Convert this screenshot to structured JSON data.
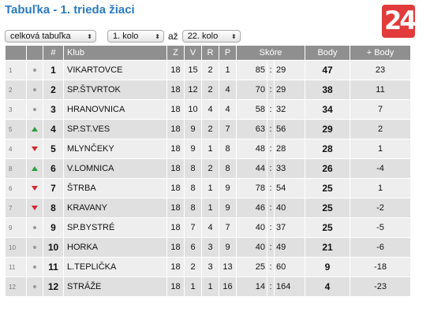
{
  "title": "Tabuľka - 1. trieda žiaci",
  "filters": {
    "table_type": "celková tabuľka",
    "round_from": "1. kolo",
    "separator": "až",
    "round_to": "22. kolo"
  },
  "logo": {
    "text": "24",
    "color": "#e23b3b"
  },
  "colors": {
    "header_bg": "#8f8f8f",
    "title": "#2a7bc4",
    "up": "#2e9e3a",
    "down": "#d42a2a"
  },
  "headers": {
    "pos": "#",
    "club": "Klub",
    "z": "Z",
    "v": "V",
    "r": "R",
    "p": "P",
    "score": "Skóre",
    "points": "Body",
    "plus": "+ Body"
  },
  "rows": [
    {
      "prev": "1",
      "trend": "same",
      "pos": "1",
      "club": "VIKARTOVCE",
      "z": "18",
      "v": "15",
      "r": "2",
      "p": "1",
      "gf": "85",
      "sep": ":",
      "ga": "29",
      "points": "47",
      "plus": "23"
    },
    {
      "prev": "2",
      "trend": "same",
      "pos": "2",
      "club": "SP.ŠTVRTOK",
      "z": "18",
      "v": "12",
      "r": "2",
      "p": "4",
      "gf": "70",
      "sep": ":",
      "ga": "29",
      "points": "38",
      "plus": "11"
    },
    {
      "prev": "3",
      "trend": "same",
      "pos": "3",
      "club": "HRANOVNICA",
      "z": "18",
      "v": "10",
      "r": "4",
      "p": "4",
      "gf": "58",
      "sep": ":",
      "ga": "32",
      "points": "34",
      "plus": "7"
    },
    {
      "prev": "5",
      "trend": "up",
      "pos": "4",
      "club": "SP.ST.VES",
      "z": "18",
      "v": "9",
      "r": "2",
      "p": "7",
      "gf": "63",
      "sep": ":",
      "ga": "56",
      "points": "29",
      "plus": "2"
    },
    {
      "prev": "4",
      "trend": "down",
      "pos": "5",
      "club": "MLYNČEKY",
      "z": "18",
      "v": "9",
      "r": "1",
      "p": "8",
      "gf": "48",
      "sep": ":",
      "ga": "28",
      "points": "28",
      "plus": "1"
    },
    {
      "prev": "8",
      "trend": "up",
      "pos": "6",
      "club": "V.LOMNICA",
      "z": "18",
      "v": "8",
      "r": "2",
      "p": "8",
      "gf": "44",
      "sep": ":",
      "ga": "33",
      "points": "26",
      "plus": "-4"
    },
    {
      "prev": "6",
      "trend": "down",
      "pos": "7",
      "club": "ŠTRBA",
      "z": "18",
      "v": "8",
      "r": "1",
      "p": "9",
      "gf": "78",
      "sep": ":",
      "ga": "54",
      "points": "25",
      "plus": "1"
    },
    {
      "prev": "7",
      "trend": "down",
      "pos": "8",
      "club": "KRAVANY",
      "z": "18",
      "v": "8",
      "r": "1",
      "p": "9",
      "gf": "46",
      "sep": ":",
      "ga": "40",
      "points": "25",
      "plus": "-2"
    },
    {
      "prev": "9",
      "trend": "same",
      "pos": "9",
      "club": "SP.BYSTRÉ",
      "z": "18",
      "v": "7",
      "r": "4",
      "p": "7",
      "gf": "40",
      "sep": ":",
      "ga": "37",
      "points": "25",
      "plus": "-5"
    },
    {
      "prev": "10",
      "trend": "same",
      "pos": "10",
      "club": "HORKA",
      "z": "18",
      "v": "6",
      "r": "3",
      "p": "9",
      "gf": "40",
      "sep": ":",
      "ga": "49",
      "points": "21",
      "plus": "-6"
    },
    {
      "prev": "11",
      "trend": "same",
      "pos": "11",
      "club": "L.TEPLIČKA",
      "z": "18",
      "v": "2",
      "r": "3",
      "p": "13",
      "gf": "25",
      "sep": ":",
      "ga": "60",
      "points": "9",
      "plus": "-18"
    },
    {
      "prev": "12",
      "trend": "same",
      "pos": "12",
      "club": "STRÁŽE",
      "z": "18",
      "v": "1",
      "r": "1",
      "p": "16",
      "gf": "14",
      "sep": ":",
      "ga": "164",
      "points": "4",
      "plus": "-23"
    }
  ]
}
